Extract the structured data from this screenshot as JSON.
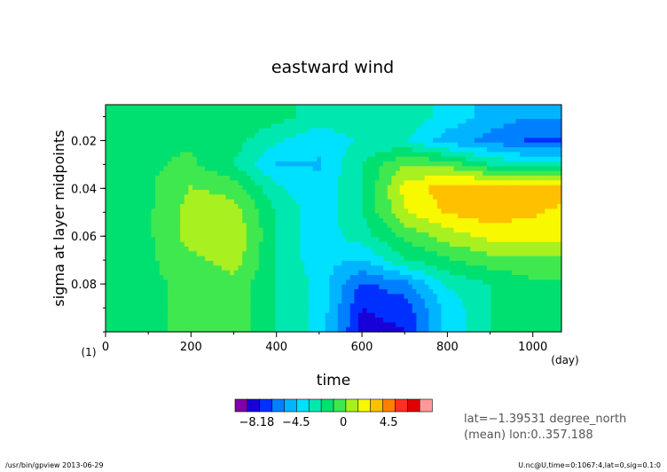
{
  "chart_data": {
    "type": "heatmap",
    "title": "eastward wind",
    "xlabel": "time",
    "ylabel": "sigma at layer midpoints",
    "x_unit": "(day)",
    "y_unit": "(1)",
    "xlim": [
      0,
      1067
    ],
    "ylim": [
      0.1,
      0.005
    ],
    "x_ticks": [
      "0",
      "200",
      "400",
      "600",
      "800",
      "1000"
    ],
    "y_ticks": [
      "0.02",
      "0.04",
      "0.06",
      "0.08"
    ],
    "colorbar": {
      "ticks": [
        "−8.18",
        "−4.5",
        "0",
        "4.5"
      ],
      "colors": [
        "#7f00a8",
        "#1800d8",
        "#0030ff",
        "#0080ff",
        "#00b4ff",
        "#00e0ff",
        "#00e8b0",
        "#00e070",
        "#40e850",
        "#a8f020",
        "#f8f800",
        "#ffc000",
        "#ff8000",
        "#ff3020",
        "#e00000",
        "#ff9898"
      ]
    },
    "data_rows": {
      "y": [
        0.01,
        0.02,
        0.03,
        0.04,
        0.05,
        0.06,
        0.07,
        0.08,
        0.09,
        0.1
      ],
      "x": [
        0,
        100,
        200,
        300,
        400,
        500,
        600,
        700,
        800,
        900,
        1000,
        1067
      ],
      "u": [
        [
          0,
          0,
          0,
          0,
          -0.5,
          -1.5,
          -1.5,
          -1.5,
          -2.5,
          -4,
          -4.5,
          -4.5
        ],
        [
          0,
          0,
          0,
          -0.5,
          -2,
          -3,
          -2,
          -2,
          -4,
          -5,
          -6,
          -6
        ],
        [
          0,
          0,
          0.5,
          -1,
          -3.5,
          -3.5,
          -1,
          1.5,
          1,
          -1,
          -2,
          -2
        ],
        [
          0,
          0,
          1.5,
          1,
          -2,
          -3,
          -1,
          3,
          4.5,
          5,
          5,
          4.5
        ],
        [
          0,
          0,
          2,
          2,
          -1,
          -3,
          -1,
          2.5,
          4,
          4.5,
          4,
          3.5
        ],
        [
          0,
          0,
          2,
          2.5,
          -1,
          -3,
          -1.5,
          0.5,
          2,
          3,
          3,
          3
        ],
        [
          0,
          0,
          1,
          2,
          -1,
          -3,
          -3.5,
          -1,
          0,
          1,
          1,
          1
        ],
        [
          0,
          0,
          0.5,
          1,
          -1,
          -2.5,
          -6,
          -5,
          -2,
          -1,
          0,
          0
        ],
        [
          0,
          0,
          0.5,
          1,
          -1,
          -2.5,
          -7,
          -6.5,
          -3,
          -1,
          -0.5,
          0
        ],
        [
          0,
          0,
          0.5,
          1,
          -1,
          -2.5,
          -7.5,
          -7,
          -3,
          -1,
          -0.5,
          0
        ]
      ]
    },
    "annotations": [
      "lat=−1.39531 degree_north",
      "(mean) lon:0..357.188"
    ]
  },
  "footer": {
    "left": "/usr/bin/gpview  2013-06-29",
    "right": "U.nc@U,time=0:1067:4,lat=0,sig=0.1:0"
  }
}
